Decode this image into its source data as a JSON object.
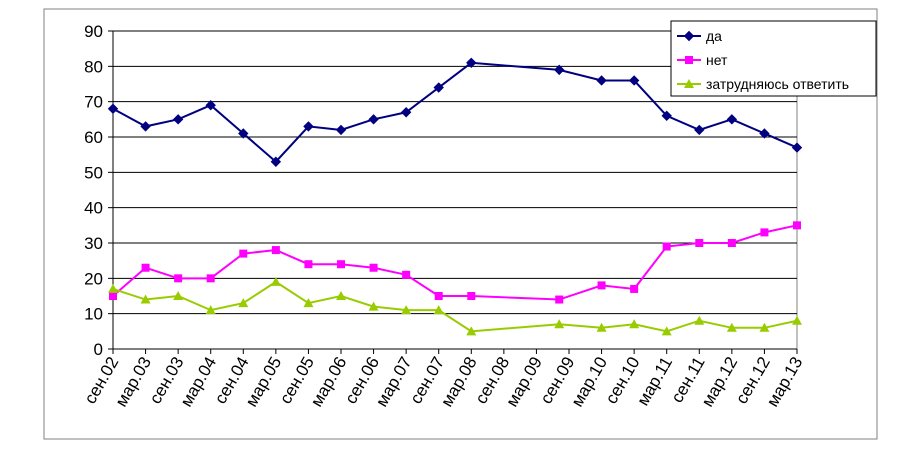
{
  "chart_data": {
    "type": "line",
    "categories": [
      "сен.02",
      "мар.03",
      "сен.03",
      "мар.04",
      "сен.04",
      "мар.05",
      "сен.05",
      "мар.06",
      "сен.06",
      "мар.07",
      "сен.07",
      "мар.08",
      "сен.08",
      "мар.09",
      "сен.09",
      "мар.10",
      "сен.10",
      "мар.11",
      "сен.11",
      "мар.12",
      "сен.12",
      "мар.13"
    ],
    "x": [
      0,
      1,
      2,
      3,
      4,
      5,
      6,
      7,
      8,
      9,
      10,
      11,
      13.7,
      15,
      16,
      17,
      18,
      19,
      20,
      21
    ],
    "series": [
      {
        "name": "да",
        "color": "#000080",
        "marker": "diamond",
        "values": [
          68,
          63,
          65,
          69,
          61,
          53,
          63,
          62,
          65,
          67,
          74,
          81,
          79,
          76,
          76,
          66,
          62,
          65,
          61,
          57
        ]
      },
      {
        "name": "нет",
        "color": "#ff00ff",
        "marker": "square",
        "values": [
          15,
          23,
          20,
          20,
          27,
          28,
          24,
          24,
          23,
          21,
          15,
          15,
          14,
          18,
          17,
          29,
          30,
          30,
          33,
          35
        ]
      },
      {
        "name": "затрудняюсь ответить",
        "color": "#99cc00",
        "marker": "triangle",
        "values": [
          17,
          14,
          15,
          11,
          13,
          19,
          13,
          15,
          12,
          11,
          11,
          5,
          7,
          6,
          7,
          5,
          8,
          6,
          6,
          8
        ]
      }
    ],
    "ylim": [
      0,
      90
    ],
    "yticks": [
      0,
      10,
      20,
      30,
      40,
      50,
      60,
      70,
      80,
      90
    ],
    "grid": true,
    "legend": "top-right"
  }
}
